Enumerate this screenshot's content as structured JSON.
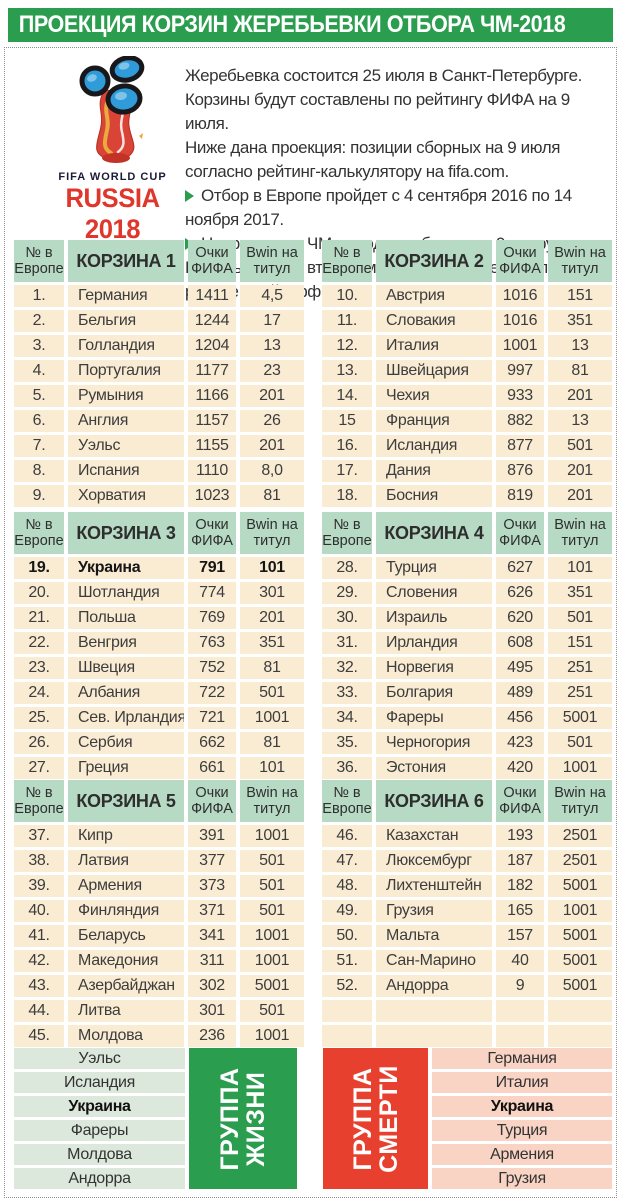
{
  "title": "ПРОЕКЦИЯ КОРЗИН ЖЕРЕБЬЕВКИ ОТБОРА ЧМ-2018",
  "logo": {
    "icon": "fifa-world-cup-2018-trophy-logo",
    "caption_top": "FIFA WORLD CUP",
    "caption_bottom": "RUSSIA 2018"
  },
  "intro": {
    "paragraphs": [
      "Жеребьевка состоится 25 июля в Санкт-Петербурге. Корзины будут составлены по рейтингу ФИФА на 9 июля.",
      "Ниже дана проекция: позиции сборных на 9 июля согласно рейтинг-калькулятору на fifa.com."
    ],
    "bullet_icon": "triangle-right-icon",
    "bullets": [
      "Отбор в Европе пройдет с 4 сентября 2016 по 14 ноября 2017.",
      "Напрямую на ЧМ выходят победители 9-ти групп. Восемь лучших вторых мест разыграют еще 4 путевки в раунде плей-офф."
    ]
  },
  "table_headers": {
    "num": "№ в Европе",
    "fifa": "Очки ФИФА",
    "bwin": "Bwin на титул"
  },
  "baskets": [
    {
      "name": "КОРЗИНА 1",
      "rows": [
        {
          "num": "1.",
          "team": "Германия",
          "fifa": "1411",
          "bwin": "4,5"
        },
        {
          "num": "2.",
          "team": "Бельгия",
          "fifa": "1244",
          "bwin": "17"
        },
        {
          "num": "3.",
          "team": "Голландия",
          "fifa": "1204",
          "bwin": "13"
        },
        {
          "num": "4.",
          "team": "Португалия",
          "fifa": "1177",
          "bwin": "23"
        },
        {
          "num": "5.",
          "team": "Румыния",
          "fifa": "1166",
          "bwin": "201"
        },
        {
          "num": "6.",
          "team": "Англия",
          "fifa": "1157",
          "bwin": "26"
        },
        {
          "num": "7.",
          "team": "Уэльс",
          "fifa": "1155",
          "bwin": "201"
        },
        {
          "num": "8.",
          "team": "Испания",
          "fifa": "1110",
          "bwin": "8,0"
        },
        {
          "num": "9.",
          "team": "Хорватия",
          "fifa": "1023",
          "bwin": "81"
        }
      ]
    },
    {
      "name": "КОРЗИНА 2",
      "rows": [
        {
          "num": "10.",
          "team": "Австрия",
          "fifa": "1016",
          "bwin": "151"
        },
        {
          "num": "11.",
          "team": "Словакия",
          "fifa": "1016",
          "bwin": "351"
        },
        {
          "num": "12.",
          "team": "Италия",
          "fifa": "1001",
          "bwin": "13"
        },
        {
          "num": "13.",
          "team": "Швейцария",
          "fifa": "997",
          "bwin": "81"
        },
        {
          "num": "14.",
          "team": "Чехия",
          "fifa": "933",
          "bwin": "201"
        },
        {
          "num": "15",
          "team": "Франция",
          "fifa": "882",
          "bwin": "13"
        },
        {
          "num": "16.",
          "team": "Исландия",
          "fifa": "877",
          "bwin": "501"
        },
        {
          "num": "17.",
          "team": "Дания",
          "fifa": "876",
          "bwin": "201"
        },
        {
          "num": "18.",
          "team": "Босния",
          "fifa": "819",
          "bwin": "201"
        }
      ]
    },
    {
      "name": "КОРЗИНА 3",
      "rows": [
        {
          "num": "19.",
          "team": "Украина",
          "fifa": "791",
          "bwin": "101",
          "bold": true
        },
        {
          "num": "20.",
          "team": "Шотландия",
          "fifa": "774",
          "bwin": "301"
        },
        {
          "num": "21.",
          "team": "Польша",
          "fifa": "769",
          "bwin": "201"
        },
        {
          "num": "22.",
          "team": "Венгрия",
          "fifa": "763",
          "bwin": "351"
        },
        {
          "num": "23.",
          "team": "Швеция",
          "fifa": "752",
          "bwin": "81"
        },
        {
          "num": "24.",
          "team": "Албания",
          "fifa": "722",
          "bwin": "501"
        },
        {
          "num": "25.",
          "team": "Сев. Ирландия",
          "fifa": "721",
          "bwin": "1001"
        },
        {
          "num": "26.",
          "team": "Сербия",
          "fifa": "662",
          "bwin": "81"
        },
        {
          "num": "27.",
          "team": "Греция",
          "fifa": "661",
          "bwin": "101"
        }
      ]
    },
    {
      "name": "КОРЗИНА 4",
      "rows": [
        {
          "num": "28.",
          "team": "Турция",
          "fifa": "627",
          "bwin": "101"
        },
        {
          "num": "29.",
          "team": "Словения",
          "fifa": "626",
          "bwin": "351"
        },
        {
          "num": "30.",
          "team": "Израиль",
          "fifa": "620",
          "bwin": "501"
        },
        {
          "num": "31.",
          "team": "Ирландия",
          "fifa": "608",
          "bwin": "151"
        },
        {
          "num": "32.",
          "team": "Норвегия",
          "fifa": "495",
          "bwin": "251"
        },
        {
          "num": "33.",
          "team": "Болгария",
          "fifa": "489",
          "bwin": "251"
        },
        {
          "num": "34.",
          "team": "Фареры",
          "fifa": "456",
          "bwin": "5001"
        },
        {
          "num": "35.",
          "team": "Черногория",
          "fifa": "423",
          "bwin": "501"
        },
        {
          "num": "36.",
          "team": "Эстония",
          "fifa": "420",
          "bwin": "1001"
        }
      ]
    },
    {
      "name": "КОРЗИНА 5",
      "rows": [
        {
          "num": "37.",
          "team": "Кипр",
          "fifa": "391",
          "bwin": "1001"
        },
        {
          "num": "38.",
          "team": "Латвия",
          "fifa": "377",
          "bwin": "501"
        },
        {
          "num": "39.",
          "team": "Армения",
          "fifa": "373",
          "bwin": "501"
        },
        {
          "num": "40.",
          "team": "Финляндия",
          "fifa": "371",
          "bwin": "501"
        },
        {
          "num": "41.",
          "team": "Беларусь",
          "fifa": "341",
          "bwin": "1001"
        },
        {
          "num": "42.",
          "team": "Македония",
          "fifa": "311",
          "bwin": "1001"
        },
        {
          "num": "43.",
          "team": "Азербайджан",
          "fifa": "302",
          "bwin": "5001"
        },
        {
          "num": "44.",
          "team": "Литва",
          "fifa": "301",
          "bwin": "501"
        },
        {
          "num": "45.",
          "team": "Молдова",
          "fifa": "236",
          "bwin": "1001"
        }
      ]
    },
    {
      "name": "КОРЗИНА 6",
      "rows": [
        {
          "num": "46.",
          "team": "Казахстан",
          "fifa": "193",
          "bwin": "2501"
        },
        {
          "num": "47.",
          "team": "Люксембург",
          "fifa": "187",
          "bwin": "2501"
        },
        {
          "num": "48.",
          "team": "Лихтенштейн",
          "fifa": "182",
          "bwin": "5001"
        },
        {
          "num": "49.",
          "team": "Грузия",
          "fifa": "165",
          "bwin": "1001"
        },
        {
          "num": "50.",
          "team": "Мальта",
          "fifa": "157",
          "bwin": "5001"
        },
        {
          "num": "51.",
          "team": "Сан-Марино",
          "fifa": "40",
          "bwin": "5001"
        },
        {
          "num": "52.",
          "team": "Андорра",
          "fifa": "9",
          "bwin": "5001"
        },
        {
          "num": "",
          "team": "",
          "fifa": "",
          "bwin": ""
        },
        {
          "num": "",
          "team": "",
          "fifa": "",
          "bwin": ""
        }
      ]
    }
  ],
  "groups": {
    "life": {
      "label": "ГРУППА ЖИЗНИ",
      "teams": [
        {
          "name": "Уэльс"
        },
        {
          "name": "Исландия"
        },
        {
          "name": "Украина",
          "bold": true
        },
        {
          "name": "Фареры"
        },
        {
          "name": "Молдова"
        },
        {
          "name": "Андорра"
        }
      ]
    },
    "death": {
      "label": "ГРУППА СМЕРТИ",
      "teams": [
        {
          "name": "Германия"
        },
        {
          "name": "Италия"
        },
        {
          "name": "Украина",
          "bold": true
        },
        {
          "name": "Турция"
        },
        {
          "name": "Армения"
        },
        {
          "name": "Грузия"
        }
      ]
    }
  },
  "colors": {
    "band_green": "#2a9d4e",
    "header_mint": "#b7dac4",
    "row_cream": "#faecd3",
    "life_row_green": "#dce8dc",
    "death_row_pink": "#f9d4c4",
    "death_red": "#e8402e",
    "logo_red": "#e0372c",
    "logo_navy": "#1b1b35",
    "ball_blue": "#2f9cd9"
  }
}
